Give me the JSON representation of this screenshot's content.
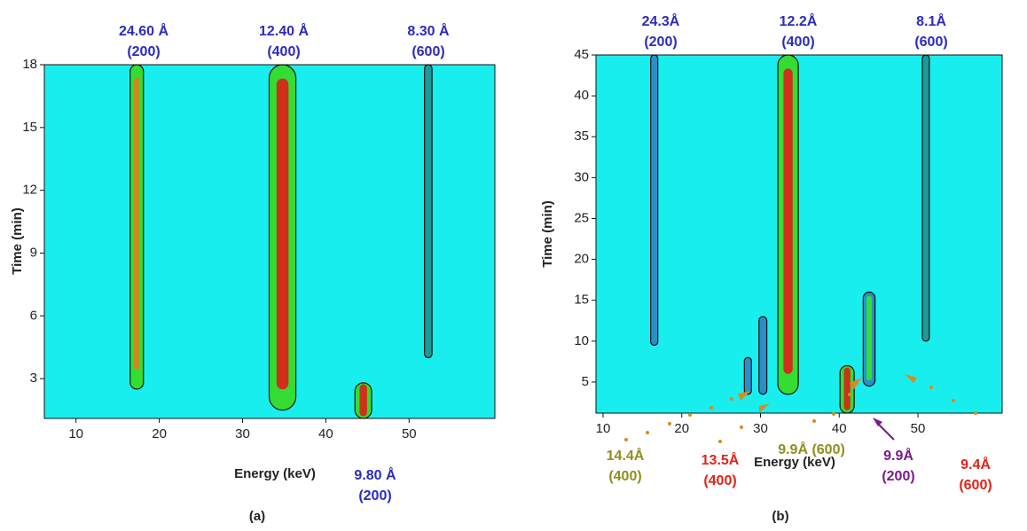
{
  "chart_data": [
    {
      "type": "contour",
      "xlabel": "Energy (keV)",
      "ylabel": "Time (min)",
      "panel": "(a)",
      "xlim": [
        6.2,
        60.3
      ],
      "xticks": [
        10,
        20,
        30,
        40,
        50
      ],
      "ylim": [
        1.1,
        18
      ],
      "yticks": [
        3,
        6,
        9,
        12,
        15,
        18
      ],
      "background": "#19eeee",
      "peaks": [
        {
          "x": 17.3,
          "y": [
            2.5,
            18
          ],
          "width": 1.6,
          "color": "#33dd33",
          "core": "#c98a20"
        },
        {
          "x": 34.8,
          "y": [
            1.5,
            18
          ],
          "width": 3.2,
          "color": "#33dd33",
          "core": "#d0301a"
        },
        {
          "x": 52.3,
          "y": [
            4,
            18
          ],
          "width": 0.9,
          "color": "#1a9a9a",
          "core": null
        },
        {
          "x": 44.5,
          "y": [
            1.1,
            2.8
          ],
          "width": 2.0,
          "color": "#33dd33",
          "core": "#d0301a"
        }
      ],
      "annotations": [
        {
          "lines": [
            "24.60 Å",
            "(200)"
          ],
          "color": "#2b2bbf"
        },
        {
          "lines": [
            "12.40 Å",
            "(400)"
          ],
          "color": "#2b2bbf"
        },
        {
          "lines": [
            "8.30 Å",
            "(600)"
          ],
          "color": "#2b2bbf"
        },
        {
          "lines": [
            "9.80 Å",
            "(200)"
          ],
          "color": "#2b2bbf"
        }
      ]
    },
    {
      "type": "contour",
      "xlabel": "Energy (keV)",
      "ylabel": "Time (min)",
      "panel": "(b)",
      "xlim": [
        9.1,
        60.7
      ],
      "xticks": [
        10,
        20,
        30,
        40,
        50
      ],
      "ylim": [
        1.2,
        45
      ],
      "yticks": [
        5,
        10,
        15,
        20,
        25,
        30,
        35,
        40,
        45
      ],
      "background": "#19eeee",
      "peaks": [
        {
          "x": 16.5,
          "y": [
            9.5,
            45
          ],
          "width": 0.9,
          "color": "#2a8fc8",
          "core": null
        },
        {
          "x": 33.5,
          "y": [
            3.5,
            45
          ],
          "width": 2.6,
          "color": "#33dd33",
          "core": "#d0301a"
        },
        {
          "x": 51,
          "y": [
            10,
            45
          ],
          "width": 0.9,
          "color": "#1a9a9a",
          "core": null
        },
        {
          "x": 28.4,
          "y": [
            3.5,
            8
          ],
          "width": 0.9,
          "color": "#2a8fc8",
          "core": null
        },
        {
          "x": 30.3,
          "y": [
            3.5,
            13
          ],
          "width": 1.0,
          "color": "#2a8fc8",
          "core": null
        },
        {
          "x": 41,
          "y": [
            1.2,
            7
          ],
          "width": 1.8,
          "color": "#33dd33",
          "core": "#d0301a"
        },
        {
          "x": 43.8,
          "y": [
            4.5,
            16
          ],
          "width": 1.5,
          "color": "#2a8fc8",
          "core": "#33dd33"
        }
      ],
      "annotations": [
        {
          "lines": [
            "24.3Å",
            "(200)"
          ],
          "color": "#2b2bbf"
        },
        {
          "lines": [
            "12.2Å",
            "(400)"
          ],
          "color": "#2b2bbf"
        },
        {
          "lines": [
            "8.1Å",
            "(600)"
          ],
          "color": "#2b2bbf"
        },
        {
          "lines": [
            "14.4Å",
            "(400)"
          ],
          "color": "#8f8f1f"
        },
        {
          "lines": [
            "13.5Å",
            "(400)"
          ],
          "color": "#e0241b"
        },
        {
          "lines": [
            "9.9Å (600)"
          ],
          "color": "#8f8f1f"
        },
        {
          "lines": [
            "9.9Å",
            "(200)"
          ],
          "color": "#7b1a8a"
        },
        {
          "lines": [
            "9.4Å",
            "(600)"
          ],
          "color": "#e0241b"
        }
      ]
    }
  ]
}
